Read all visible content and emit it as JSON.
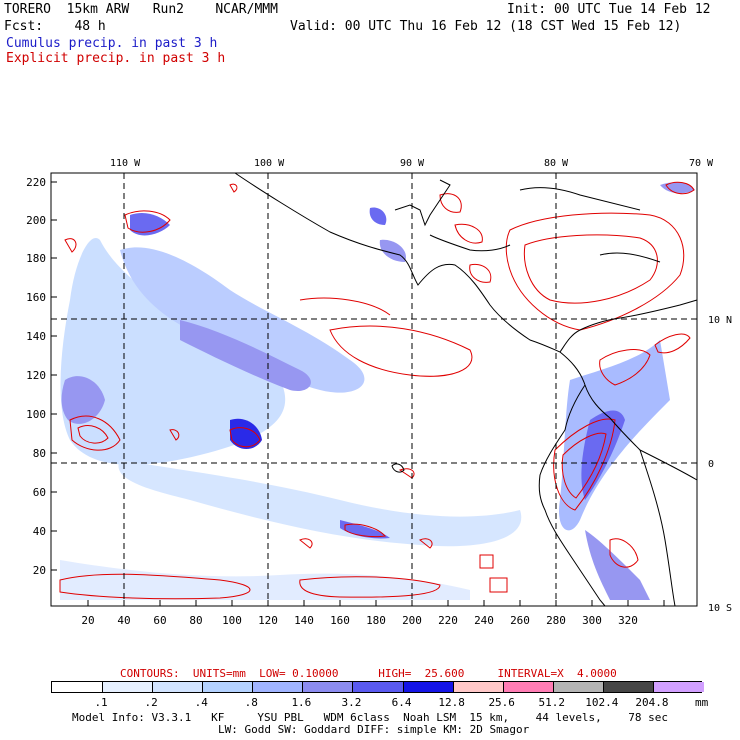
{
  "header": {
    "model_line": "TORERO  15km ARW   Run2    NCAR/MMM",
    "init_line": "Init: 00 UTC Tue 14 Feb 12",
    "fcst_line": "Fcst:    48 h",
    "valid_line": "Valid: 00 UTC Thu 16 Feb 12 (18 CST Wed 15 Feb 12)",
    "cumulus_label": "Cumulus precip. in past 3 h",
    "explicit_label": "Explicit precip. in past 3 h"
  },
  "map": {
    "lon_labels": [
      "110 W",
      "100 W",
      "90 W",
      "80 W",
      "70 W"
    ],
    "lat_labels": [
      "10 N",
      "0",
      "10 S"
    ],
    "x_ticks": [
      "20",
      "40",
      "60",
      "80",
      "100",
      "120",
      "140",
      "160",
      "180",
      "200",
      "220",
      "240",
      "260",
      "280",
      "300",
      "320"
    ],
    "y_ticks": [
      "220",
      "200",
      "180",
      "160",
      "140",
      "120",
      "100",
      "80",
      "60",
      "40",
      "20"
    ],
    "colors": {
      "land": "#000000",
      "grid": "#000000",
      "explicit": "#e00000"
    }
  },
  "contour_info": {
    "text": "CONTOURS:  UNITS=mm  LOW= 0.10000      HIGH=  25.600     INTERVAL=X  4.0000"
  },
  "colorbar": {
    "labels": [
      ".1",
      ".2",
      ".4",
      ".8",
      "1.6",
      "3.2",
      "6.4",
      "12.8",
      "25.6",
      "51.2",
      "102.4",
      "204.8"
    ],
    "unit": "mm",
    "colors": [
      "#ffffff",
      "#e6f0ff",
      "#d2e4ff",
      "#b4d2ff",
      "#a0b4ff",
      "#8c8cf0",
      "#5a5af0",
      "#1414e6",
      "#ffc8c8",
      "#ff7db4",
      "#b4b4b4",
      "#464646",
      "#d2a0ff"
    ]
  },
  "footer": {
    "line1": "Model Info: V3.3.1   KF     YSU PBL   WDM 6class  Noah LSM  15 km,    44 levels,    78 sec",
    "line2": "LW: Godd SW: Goddard DIFF: simple KM: 2D Smagor"
  }
}
